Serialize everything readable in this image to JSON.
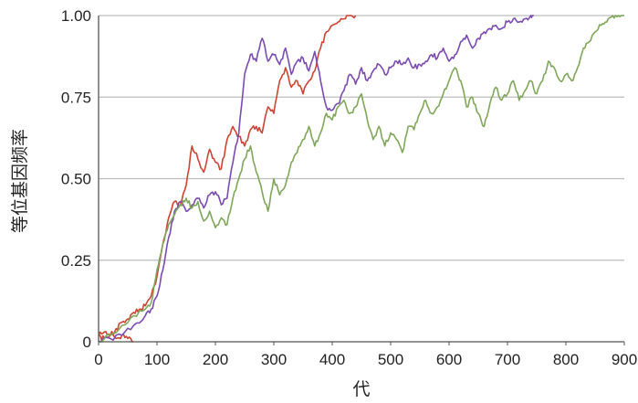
{
  "chart_data": {
    "type": "line",
    "title": "",
    "xlabel": "代",
    "ylabel": "等位基因频率",
    "xlim": [
      0,
      900
    ],
    "ylim": [
      0,
      1
    ],
    "xticks": [
      "0",
      "100",
      "200",
      "300",
      "400",
      "500",
      "600",
      "700",
      "800",
      "900"
    ],
    "yticks": [
      "0",
      "0.25",
      "0.50",
      "0.75",
      "1.00"
    ],
    "grid": "horizontal",
    "legend": "none",
    "series": [
      {
        "color": "#cc4433",
        "x": [
          0,
          10,
          20,
          30,
          40,
          50,
          60,
          70,
          80,
          90,
          100,
          110,
          120,
          130,
          140,
          150,
          160,
          170,
          180,
          190,
          200,
          210,
          220,
          230,
          240,
          250,
          260,
          270,
          280,
          290,
          300,
          310,
          320,
          330,
          340,
          350,
          360,
          370,
          380,
          390,
          400,
          410,
          420,
          430,
          440
        ],
        "y": [
          0.02,
          0.03,
          0.02,
          0.04,
          0.06,
          0.07,
          0.09,
          0.1,
          0.11,
          0.14,
          0.2,
          0.3,
          0.38,
          0.43,
          0.42,
          0.48,
          0.6,
          0.56,
          0.52,
          0.59,
          0.55,
          0.53,
          0.62,
          0.66,
          0.63,
          0.6,
          0.65,
          0.66,
          0.64,
          0.72,
          0.7,
          0.8,
          0.84,
          0.78,
          0.8,
          0.76,
          0.8,
          0.83,
          0.9,
          0.95,
          0.97,
          0.98,
          0.99,
          1.0,
          1.0
        ]
      },
      {
        "color": "#cc4433",
        "x": [
          0,
          10,
          20,
          30,
          40,
          50,
          60
        ],
        "y": [
          0.02,
          0.01,
          0.02,
          0.01,
          0.02,
          0.01,
          0.0
        ]
      },
      {
        "color": "#7a4bb0",
        "x": [
          0,
          20,
          40,
          60,
          80,
          90,
          100,
          110,
          120,
          130,
          140,
          150,
          160,
          170,
          180,
          190,
          200,
          210,
          220,
          230,
          240,
          250,
          260,
          270,
          280,
          290,
          300,
          310,
          320,
          330,
          340,
          350,
          360,
          370,
          380,
          390,
          400,
          410,
          420,
          430,
          440,
          450,
          460,
          470,
          480,
          490,
          500,
          510,
          520,
          530,
          540,
          550,
          560,
          570,
          580,
          590,
          600,
          610,
          620,
          630,
          640,
          650,
          660,
          670,
          680,
          690,
          700,
          710,
          720,
          730,
          740,
          745
        ],
        "y": [
          0.0,
          0.01,
          0.02,
          0.05,
          0.08,
          0.1,
          0.14,
          0.22,
          0.32,
          0.4,
          0.43,
          0.4,
          0.42,
          0.44,
          0.41,
          0.45,
          0.46,
          0.42,
          0.44,
          0.55,
          0.64,
          0.82,
          0.88,
          0.86,
          0.93,
          0.86,
          0.88,
          0.85,
          0.9,
          0.82,
          0.86,
          0.87,
          0.83,
          0.89,
          0.8,
          0.72,
          0.71,
          0.73,
          0.77,
          0.82,
          0.79,
          0.84,
          0.8,
          0.83,
          0.85,
          0.82,
          0.84,
          0.86,
          0.85,
          0.87,
          0.84,
          0.85,
          0.86,
          0.88,
          0.87,
          0.9,
          0.86,
          0.88,
          0.92,
          0.94,
          0.9,
          0.93,
          0.95,
          0.96,
          0.97,
          0.96,
          0.98,
          0.99,
          0.98,
          0.99,
          1.0,
          1.0
        ]
      },
      {
        "color": "#7fa65a",
        "x": [
          0,
          20,
          40,
          60,
          80,
          90,
          100,
          110,
          120,
          130,
          140,
          150,
          160,
          170,
          180,
          190,
          200,
          210,
          220,
          230,
          240,
          250,
          260,
          270,
          280,
          290,
          300,
          310,
          320,
          330,
          340,
          350,
          360,
          370,
          380,
          390,
          400,
          410,
          420,
          430,
          440,
          450,
          460,
          470,
          480,
          490,
          500,
          510,
          520,
          530,
          540,
          550,
          560,
          570,
          580,
          590,
          600,
          610,
          620,
          630,
          640,
          650,
          660,
          670,
          680,
          690,
          700,
          710,
          720,
          730,
          740,
          750,
          760,
          770,
          780,
          790,
          800,
          810,
          820,
          830,
          840,
          850,
          860,
          870,
          880,
          890,
          900
        ],
        "y": [
          0.0,
          0.02,
          0.05,
          0.08,
          0.1,
          0.12,
          0.22,
          0.3,
          0.36,
          0.39,
          0.42,
          0.44,
          0.41,
          0.43,
          0.37,
          0.4,
          0.35,
          0.38,
          0.36,
          0.44,
          0.5,
          0.56,
          0.6,
          0.52,
          0.46,
          0.4,
          0.5,
          0.45,
          0.48,
          0.55,
          0.58,
          0.62,
          0.66,
          0.6,
          0.64,
          0.7,
          0.68,
          0.72,
          0.74,
          0.7,
          0.72,
          0.76,
          0.68,
          0.62,
          0.66,
          0.6,
          0.64,
          0.62,
          0.58,
          0.66,
          0.65,
          0.7,
          0.74,
          0.7,
          0.72,
          0.76,
          0.8,
          0.84,
          0.8,
          0.72,
          0.75,
          0.7,
          0.66,
          0.73,
          0.78,
          0.74,
          0.76,
          0.8,
          0.74,
          0.77,
          0.8,
          0.76,
          0.8,
          0.86,
          0.84,
          0.8,
          0.82,
          0.8,
          0.84,
          0.9,
          0.92,
          0.95,
          0.97,
          0.98,
          1.0,
          1.0,
          1.0
        ]
      }
    ]
  }
}
